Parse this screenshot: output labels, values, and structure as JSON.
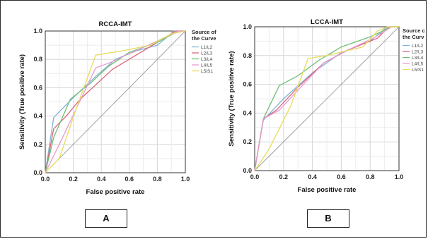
{
  "chart_data": [
    {
      "type": "line",
      "title": "RCCA-IMT",
      "xlabel": "False positive rate",
      "ylabel": "Sensitivity (True positive rate)",
      "xlim": [
        0,
        1
      ],
      "ylim": [
        0,
        1
      ],
      "xticks": [
        "0.0",
        "0.2",
        "0.4",
        "0.6",
        "0.8",
        "1.0"
      ],
      "yticks": [
        "0.0",
        "0.2",
        "0.4",
        "0.6",
        "0.8",
        "1.0"
      ],
      "grid": true,
      "legend_position": "right",
      "legend_title": [
        "Source of",
        "the Curve"
      ],
      "series": [
        {
          "name": "L1/L2",
          "color": "#7fb3d5",
          "x": [
            0,
            0.06,
            0.2,
            0.35,
            0.5,
            0.65,
            0.8,
            0.92,
            1.0
          ],
          "y": [
            0,
            0.39,
            0.53,
            0.67,
            0.8,
            0.86,
            0.9,
            1.0,
            1.0
          ]
        },
        {
          "name": "L2/L3",
          "color": "#d9667a",
          "x": [
            0,
            0.06,
            0.15,
            0.25,
            0.48,
            0.7,
            0.85,
            0.93,
            1.0
          ],
          "y": [
            0,
            0.31,
            0.4,
            0.52,
            0.73,
            0.86,
            0.95,
            1.0,
            1.0
          ]
        },
        {
          "name": "L3/L4",
          "color": "#6fbf73",
          "x": [
            0,
            0.06,
            0.18,
            0.32,
            0.45,
            0.6,
            0.8,
            0.95,
            1.0
          ],
          "y": [
            0,
            0.25,
            0.52,
            0.63,
            0.75,
            0.85,
            0.92,
            1.0,
            1.0
          ]
        },
        {
          "name": "L4/L5",
          "color": "#e89ad0",
          "x": [
            0,
            0.1,
            0.22,
            0.36,
            0.47,
            0.62,
            0.78,
            0.95,
            1.0
          ],
          "y": [
            0,
            0.2,
            0.45,
            0.74,
            0.78,
            0.85,
            0.92,
            1.0,
            1.0
          ]
        },
        {
          "name": "L5/S1",
          "color": "#e6dc5a",
          "x": [
            0,
            0.1,
            0.22,
            0.36,
            0.55,
            0.75,
            0.9,
            1.0
          ],
          "y": [
            0,
            0.1,
            0.45,
            0.83,
            0.86,
            0.9,
            0.98,
            1.0
          ]
        }
      ]
    },
    {
      "type": "line",
      "title": "LCCA-IMT",
      "xlabel": "False positive rate",
      "ylabel": "Sensitivity (True positive rate)",
      "xlim": [
        0,
        1
      ],
      "ylim": [
        0,
        1
      ],
      "xticks": [
        "0.0",
        "0.2",
        "0.4",
        "0.6",
        "0.8",
        "1.0"
      ],
      "yticks": [
        "0.0",
        "0.2",
        "0.4",
        "0.6",
        "0.8",
        "1.0"
      ],
      "grid": true,
      "legend_position": "right",
      "legend_title": [
        "Source c",
        "the Curv"
      ],
      "series": [
        {
          "name": "L1/L2",
          "color": "#7fb3d5",
          "x": [
            0,
            0.06,
            0.2,
            0.4,
            0.6,
            0.8,
            0.92,
            1.0
          ],
          "y": [
            0,
            0.35,
            0.5,
            0.68,
            0.82,
            0.9,
            1.0,
            1.0
          ]
        },
        {
          "name": "L2/L3",
          "color": "#d9667a",
          "x": [
            0,
            0.06,
            0.15,
            0.3,
            0.48,
            0.65,
            0.85,
            0.93,
            1.0
          ],
          "y": [
            0,
            0.36,
            0.42,
            0.58,
            0.75,
            0.84,
            0.92,
            1.0,
            1.0
          ]
        },
        {
          "name": "L3/L4",
          "color": "#6fbf73",
          "x": [
            0,
            0.06,
            0.17,
            0.3,
            0.45,
            0.6,
            0.8,
            0.95,
            1.0
          ],
          "y": [
            0,
            0.36,
            0.59,
            0.66,
            0.77,
            0.86,
            0.93,
            1.0,
            1.0
          ]
        },
        {
          "name": "L4/L5",
          "color": "#e89ad0",
          "x": [
            0,
            0.06,
            0.17,
            0.3,
            0.48,
            0.65,
            0.82,
            0.95,
            1.0
          ],
          "y": [
            0,
            0.36,
            0.42,
            0.56,
            0.75,
            0.84,
            0.92,
            1.0,
            1.0
          ]
        },
        {
          "name": "L5/S1",
          "color": "#e6dc5a",
          "x": [
            0,
            0.1,
            0.25,
            0.37,
            0.5,
            0.75,
            0.85,
            0.92,
            1.0
          ],
          "y": [
            0,
            0.15,
            0.45,
            0.78,
            0.8,
            0.86,
            0.97,
            1.0,
            1.0
          ]
        }
      ]
    }
  ],
  "panels": {
    "a_label": "A",
    "b_label": "B"
  },
  "colors": {
    "axis": "#333333",
    "grid": "#d6d6d6",
    "frame": "#2b2b2b",
    "diagonal": "#8c8c8c"
  }
}
